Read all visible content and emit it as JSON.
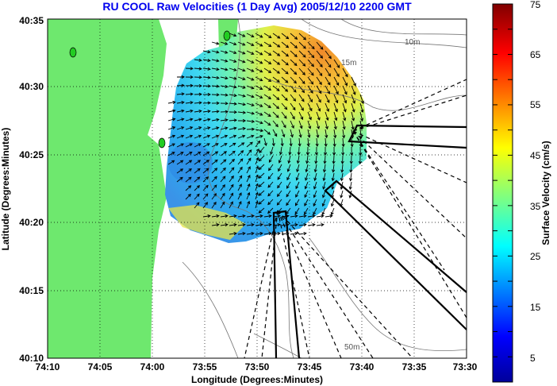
{
  "chart_data": {
    "type": "vector-field-map",
    "title": "RU COOL Raw Velocities (1 Day Avg) 2005/12/10 2200 GMT",
    "xlabel": "Longitude (Degrees:Minutes)",
    "ylabel": "Latitude (Degrees:Minutes)",
    "xlim": [
      -74.1667,
      -73.5
    ],
    "ylim": [
      40.1667,
      40.5833
    ],
    "x_ticks": [
      {
        "value": -74.1667,
        "label": "74:10"
      },
      {
        "value": -74.0833,
        "label": "74:05"
      },
      {
        "value": -74.0,
        "label": "74:00"
      },
      {
        "value": -73.9167,
        "label": "73:55"
      },
      {
        "value": -73.8333,
        "label": "73:50"
      },
      {
        "value": -73.75,
        "label": "73:45"
      },
      {
        "value": -73.6667,
        "label": "73:40"
      },
      {
        "value": -73.5833,
        "label": "73:35"
      },
      {
        "value": -73.5,
        "label": "73:30"
      }
    ],
    "y_ticks": [
      {
        "value": 40.1667,
        "label": "40:10"
      },
      {
        "value": 40.25,
        "label": "40:15"
      },
      {
        "value": 40.3333,
        "label": "40:20"
      },
      {
        "value": 40.4167,
        "label": "40:25"
      },
      {
        "value": 40.5,
        "label": "40:30"
      },
      {
        "value": 40.5833,
        "label": "40:35"
      }
    ],
    "grid": "dotted",
    "colorbar": {
      "label": "Surface Velocity (cm/s)",
      "range": [
        0,
        75
      ],
      "ticks": [
        "5",
        "15",
        "25",
        "35",
        "45",
        "55",
        "65",
        "75"
      ],
      "colormap": "jet"
    },
    "contour_labels": [
      {
        "text": "10m",
        "lon": -73.612,
        "lat": 40.55
      },
      {
        "text": "15m",
        "lon": -73.725,
        "lat": 40.536
      },
      {
        "text": "50m",
        "lon": -73.69,
        "lat": 40.183
      }
    ],
    "flow": {
      "description": "clockwise eddy; northern portion flows east, eastern portion flows south-southwest, central flow southwest, southern nearshore flow east",
      "speed_cm_s": {
        "max_northeast": 55,
        "central_west": 10,
        "typical": 22
      }
    },
    "land_color": "#6ee86e",
    "site_markers": [
      {
        "lon": -74.127,
        "lat": 40.54
      },
      {
        "lon": -73.955,
        "lat": 40.57
      },
      {
        "lon": -74.0,
        "lat": 40.445
      }
    ]
  },
  "colors": {
    "title": "#0000ee",
    "land": "#6ee86e",
    "site": "#22cc22"
  }
}
